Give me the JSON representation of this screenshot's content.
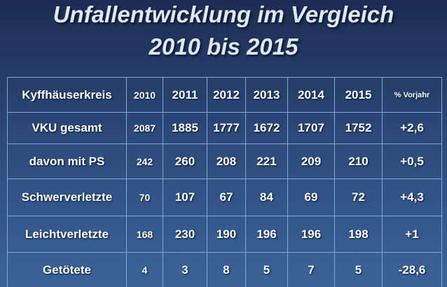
{
  "title": {
    "line1": "Unfallentwicklung im Vergleich",
    "line2": "2010 bis 2015"
  },
  "table": {
    "header": [
      "Kyffhäuserkreis",
      "2010",
      "2011",
      "2012",
      "2013",
      "2014",
      "2015",
      "% Vorjahr"
    ],
    "rows": [
      [
        "VKU gesamt",
        "2087",
        "1885",
        "1777",
        "1672",
        "1707",
        "1752",
        "+2,6"
      ],
      [
        "davon mit PS",
        "242",
        "260",
        "208",
        "221",
        "209",
        "210",
        "+0,5"
      ],
      [
        "Schwerverletzte",
        "70",
        "107",
        "67",
        "84",
        "69",
        "72",
        "+4,3"
      ],
      [
        "Leichtverletzte",
        "168",
        "230",
        "190",
        "196",
        "196",
        "198",
        "+1"
      ],
      [
        "Getötete",
        "4",
        "3",
        "8",
        "5",
        "7",
        "5",
        "-28,6"
      ]
    ]
  }
}
